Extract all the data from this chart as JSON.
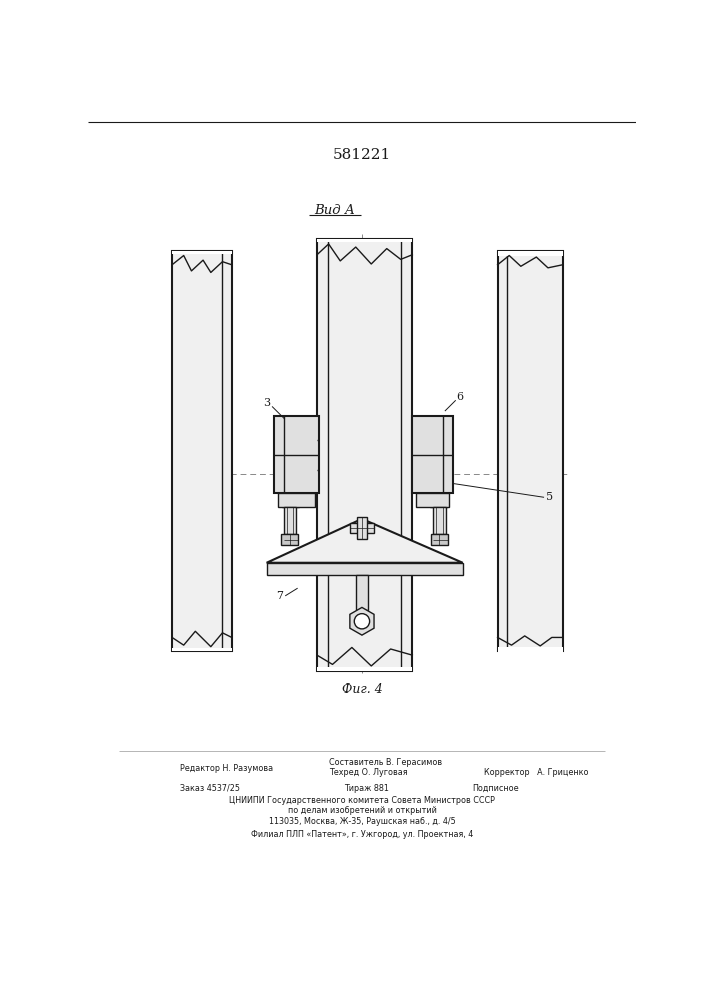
{
  "title": "581221",
  "view_label": "Вид А",
  "fig_label": "Фиг. 4",
  "bg_color": "#ffffff",
  "line_color": "#1a1a1a",
  "fill_light": "#f0f0f0",
  "fill_mid": "#e0e0e0",
  "fill_dark": "#c8c8c8",
  "page_width": 7.07,
  "page_height": 10.0
}
